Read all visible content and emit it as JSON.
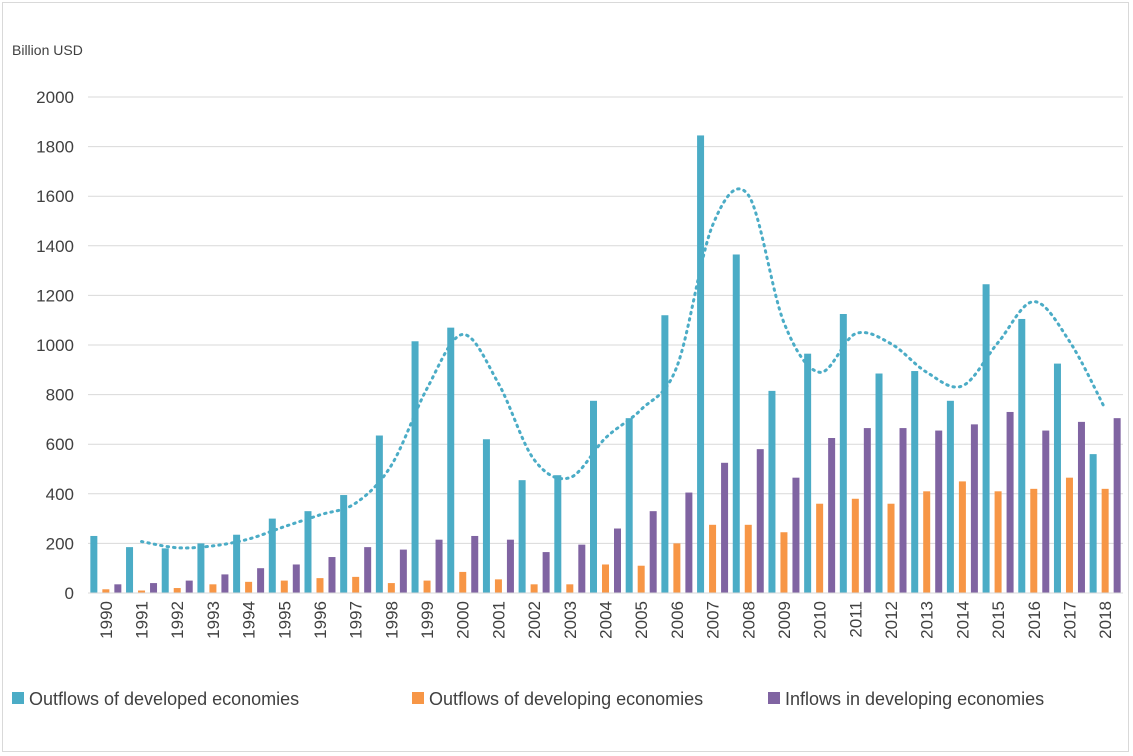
{
  "chart_data": {
    "type": "bar",
    "title": "",
    "xlabel": "",
    "ylabel": "Billion USD",
    "ylim": [
      0,
      2000
    ],
    "yticks": [
      0,
      200,
      400,
      600,
      800,
      1000,
      1200,
      1400,
      1600,
      1800,
      2000
    ],
    "grid": true,
    "legend_position": "bottom",
    "categories": [
      "1990",
      "1991",
      "1992",
      "1993",
      "1994",
      "1995",
      "1996",
      "1997",
      "1998",
      "1999",
      "2000",
      "2001",
      "2002",
      "2003",
      "2004",
      "2005",
      "2006",
      "2007",
      "2008",
      "2009",
      "2010",
      "2011",
      "2012",
      "2013",
      "2014",
      "2015",
      "2016",
      "2017",
      "2018"
    ],
    "series": [
      {
        "name": "Outflows of developed economies",
        "color": "#4bacc6",
        "values": [
          230,
          185,
          180,
          200,
          235,
          300,
          330,
          395,
          635,
          1015,
          1070,
          620,
          455,
          475,
          775,
          705,
          1120,
          1845,
          1365,
          815,
          965,
          1125,
          885,
          895,
          775,
          1245,
          1105,
          925,
          560
        ]
      },
      {
        "name": "Outflows of developing economies",
        "color": "#f79646",
        "values": [
          15,
          10,
          20,
          35,
          45,
          50,
          60,
          65,
          40,
          50,
          85,
          55,
          35,
          35,
          115,
          110,
          200,
          275,
          275,
          245,
          360,
          380,
          360,
          410,
          450,
          410,
          420,
          465,
          420
        ]
      },
      {
        "name": "Inflows in developing economies",
        "color": "#8064a2",
        "values": [
          35,
          40,
          50,
          75,
          100,
          115,
          145,
          185,
          175,
          215,
          230,
          215,
          165,
          195,
          260,
          330,
          405,
          525,
          580,
          465,
          625,
          665,
          665,
          655,
          680,
          730,
          655,
          690,
          705
        ]
      }
    ],
    "trendline": {
      "type": "moving-average-2",
      "of_series": "Outflows of developed economies",
      "color": "#4bacc6",
      "style": "dotted"
    }
  }
}
